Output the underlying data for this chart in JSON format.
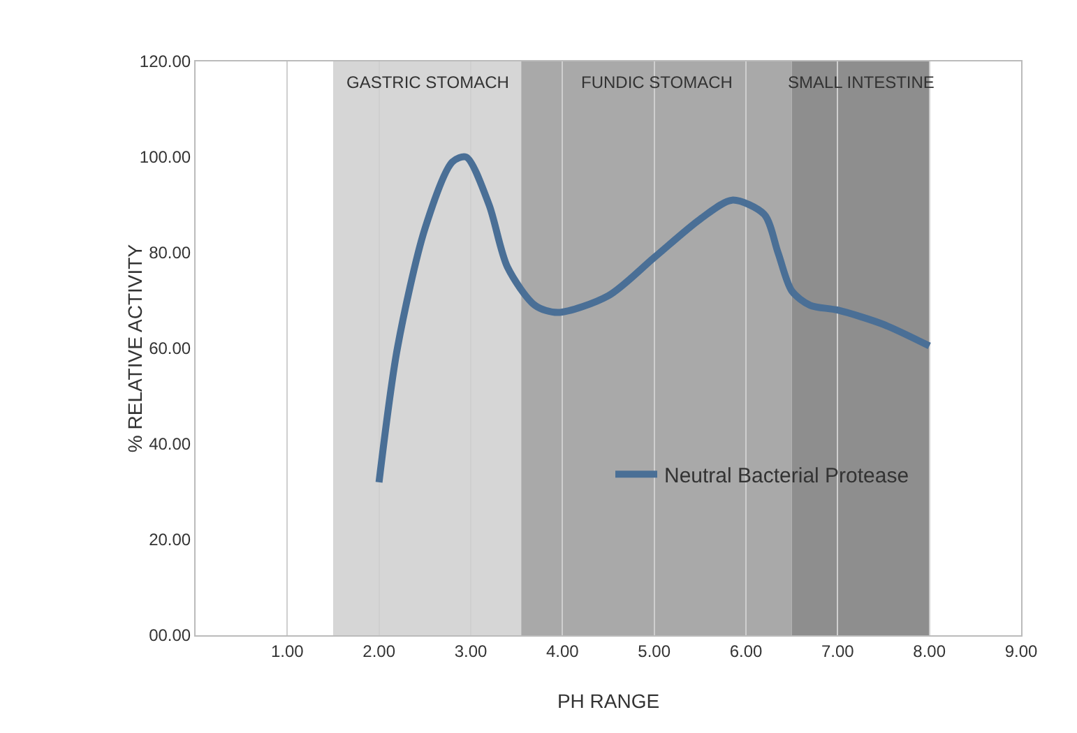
{
  "chart_data": {
    "type": "line",
    "xlabel": "PH RANGE",
    "ylabel": "% RELATIVE ACTIVITY",
    "x": [
      2.0,
      2.2,
      2.5,
      2.8,
      2.95,
      3.2,
      3.4,
      3.7,
      3.95,
      4.5,
      5.0,
      5.5,
      5.85,
      6.2,
      6.35,
      6.5,
      6.7,
      7.0,
      7.5,
      8.0
    ],
    "series": [
      {
        "name": "Neutral Bacterial Protease",
        "color": "#4a6f96",
        "values": [
          32,
          60,
          85,
          99,
          100,
          90,
          77,
          69,
          67.5,
          71,
          79,
          87,
          91,
          88,
          80,
          72,
          69,
          68,
          65,
          60.5
        ]
      }
    ],
    "xlim": [
      0,
      9
    ],
    "xticks": [
      {
        "value": 1,
        "label": "1.00"
      },
      {
        "value": 2,
        "label": "2.00"
      },
      {
        "value": 3,
        "label": "3.00"
      },
      {
        "value": 4,
        "label": "4.00"
      },
      {
        "value": 5,
        "label": "5.00"
      },
      {
        "value": 6,
        "label": "6.00"
      },
      {
        "value": 7,
        "label": "7.00"
      },
      {
        "value": 8,
        "label": "8.00"
      },
      {
        "value": 9,
        "label": "9.00"
      }
    ],
    "ylim": [
      0,
      120
    ],
    "yticks": [
      {
        "value": 0,
        "label": "00.00"
      },
      {
        "value": 20,
        "label": "20.00"
      },
      {
        "value": 40,
        "label": "40.00"
      },
      {
        "value": 60,
        "label": "60.00"
      },
      {
        "value": 80,
        "label": "80.00"
      },
      {
        "value": 100,
        "label": "100.00"
      },
      {
        "value": 120,
        "label": "120.00"
      }
    ],
    "bands": [
      {
        "axis": "x",
        "from": 1.5,
        "to": 3.55,
        "label": "GASTRIC STOMACH",
        "color": "#d6d6d6"
      },
      {
        "axis": "x",
        "from": 3.55,
        "to": 6.5,
        "label": "FUNDIC STOMACH",
        "color": "#a9a9a9"
      },
      {
        "axis": "x",
        "from": 6.5,
        "to": 8.0,
        "label": "SMALL INTESTINE",
        "color": "#8e8e8e"
      }
    ],
    "grid": "x",
    "legend": "center",
    "marker": "none",
    "line_style": "solid"
  }
}
